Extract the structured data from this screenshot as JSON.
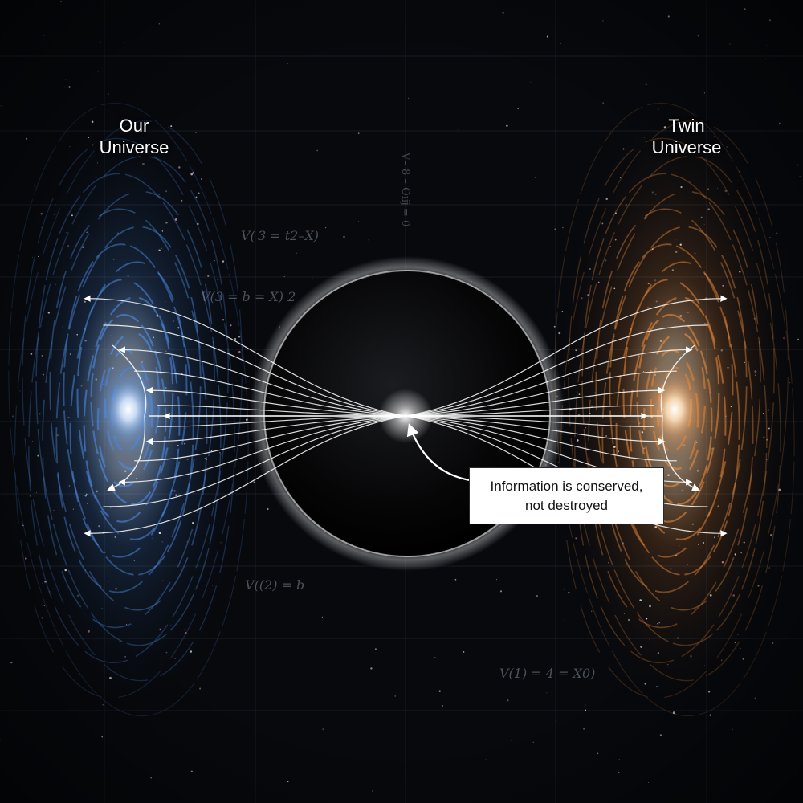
{
  "labels": {
    "left_universe": [
      "Our",
      "Universe"
    ],
    "right_universe": [
      "Twin",
      "Universe"
    ]
  },
  "callout": {
    "line1": "Information is conserved,",
    "line2": "not destroyed"
  },
  "equations": {
    "eq1": "V( 3 = t2–X)",
    "eq2": "V(3 = b = X) 2",
    "eq3": "V((2) = b",
    "eq4": "V(1) = 4 = X0)",
    "vertical": "V– 8 – Oıĳ = 0"
  },
  "colors": {
    "background": "#07090d",
    "left_galaxy": "#4f8fe8",
    "right_galaxy": "#e88a3c",
    "core_glow": "#ffffff",
    "field_lines": "#ffffff",
    "grid": "#3a4250"
  }
}
